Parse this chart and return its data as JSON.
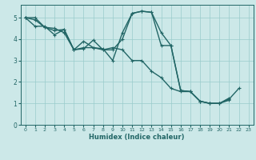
{
  "xlabel": "Humidex (Indice chaleur)",
  "bg_color": "#cce8e8",
  "line_color": "#226666",
  "grid_color": "#99cccc",
  "xlim": [
    -0.5,
    23.5
  ],
  "ylim": [
    0,
    5.6
  ],
  "yticks": [
    0,
    1,
    2,
    3,
    4,
    5
  ],
  "xticks": [
    0,
    1,
    2,
    3,
    4,
    5,
    6,
    7,
    8,
    9,
    10,
    11,
    12,
    13,
    14,
    15,
    16,
    17,
    18,
    19,
    20,
    21,
    22,
    23
  ],
  "line1_x": [
    0,
    1,
    2,
    3,
    4,
    5,
    6,
    7,
    8,
    9,
    10,
    11,
    12,
    13,
    14,
    15,
    16,
    17,
    18,
    19,
    20,
    21,
    22
  ],
  "line1_y": [
    5.0,
    5.0,
    4.55,
    4.5,
    4.3,
    3.5,
    3.9,
    3.6,
    3.55,
    3.0,
    4.3,
    5.2,
    5.3,
    5.25,
    4.3,
    3.7,
    1.6,
    1.55,
    1.1,
    1.0,
    1.0,
    1.2,
    1.7
  ],
  "line2_x": [
    0,
    1,
    2,
    3,
    4,
    5,
    6,
    7,
    8,
    9,
    10,
    11,
    12,
    13,
    14,
    15,
    16,
    17,
    18,
    19,
    20,
    21
  ],
  "line2_y": [
    5.0,
    4.9,
    4.55,
    4.4,
    4.45,
    3.5,
    3.6,
    3.6,
    3.5,
    3.5,
    4.0,
    5.2,
    5.3,
    5.25,
    3.7,
    3.7,
    1.6,
    1.55,
    1.1,
    1.0,
    1.0,
    1.15
  ],
  "line3_x": [
    0,
    1,
    2,
    3,
    4,
    5,
    6,
    7,
    8,
    9,
    10,
    11,
    12,
    13,
    14,
    15,
    16,
    17,
    18,
    19,
    20,
    21
  ],
  "line3_y": [
    5.0,
    4.6,
    4.6,
    4.2,
    4.45,
    3.5,
    3.55,
    3.95,
    3.5,
    3.6,
    3.5,
    3.0,
    3.0,
    2.5,
    2.2,
    1.7,
    1.55,
    1.55,
    1.1,
    1.0,
    1.0,
    1.25
  ],
  "marker": "+",
  "markersize": 3.5,
  "linewidth": 1.0
}
